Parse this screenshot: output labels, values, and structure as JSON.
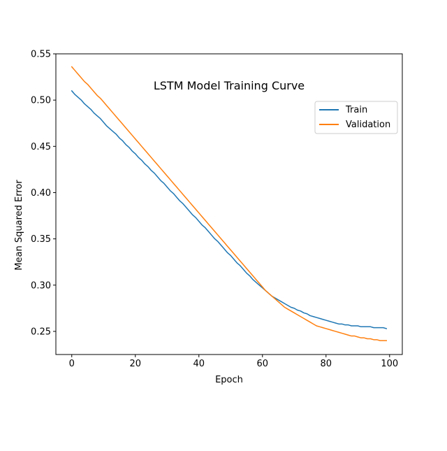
{
  "chart_data": {
    "type": "line",
    "title": "LSTM Model Training Curve",
    "xlabel": "Epoch",
    "ylabel": "Mean Squared Error",
    "xlim": [
      -5,
      104
    ],
    "ylim": [
      0.225,
      0.55
    ],
    "xticks": [
      0,
      20,
      40,
      60,
      80,
      100
    ],
    "xtick_labels": [
      "0",
      "20",
      "40",
      "60",
      "80",
      "100"
    ],
    "yticks": [
      0.25,
      0.3,
      0.35,
      0.4,
      0.45,
      0.5,
      0.55
    ],
    "ytick_labels": [
      "0.25",
      "0.30",
      "0.35",
      "0.40",
      "0.45",
      "0.50",
      "0.55"
    ],
    "grid": false,
    "legend_position": "top-right",
    "x": [
      0,
      1,
      2,
      3,
      4,
      5,
      6,
      7,
      8,
      9,
      10,
      11,
      12,
      13,
      14,
      15,
      16,
      17,
      18,
      19,
      20,
      21,
      22,
      23,
      24,
      25,
      26,
      27,
      28,
      29,
      30,
      31,
      32,
      33,
      34,
      35,
      36,
      37,
      38,
      39,
      40,
      41,
      42,
      43,
      44,
      45,
      46,
      47,
      48,
      49,
      50,
      51,
      52,
      53,
      54,
      55,
      56,
      57,
      58,
      59,
      60,
      61,
      62,
      63,
      64,
      65,
      66,
      67,
      68,
      69,
      70,
      71,
      72,
      73,
      74,
      75,
      76,
      77,
      78,
      79,
      80,
      81,
      82,
      83,
      84,
      85,
      86,
      87,
      88,
      89,
      90,
      91,
      92,
      93,
      94,
      95,
      96,
      97,
      98,
      99
    ],
    "series": [
      {
        "name": "Train",
        "color": "#1f77b4",
        "values": [
          0.51,
          0.506,
          0.503,
          0.5,
          0.496,
          0.493,
          0.49,
          0.486,
          0.483,
          0.48,
          0.476,
          0.472,
          0.469,
          0.466,
          0.463,
          0.459,
          0.456,
          0.452,
          0.449,
          0.445,
          0.442,
          0.438,
          0.435,
          0.431,
          0.428,
          0.424,
          0.421,
          0.417,
          0.413,
          0.41,
          0.406,
          0.402,
          0.399,
          0.395,
          0.391,
          0.388,
          0.384,
          0.38,
          0.376,
          0.373,
          0.369,
          0.365,
          0.362,
          0.358,
          0.354,
          0.35,
          0.347,
          0.343,
          0.339,
          0.335,
          0.332,
          0.328,
          0.324,
          0.321,
          0.317,
          0.313,
          0.31,
          0.306,
          0.303,
          0.3,
          0.297,
          0.294,
          0.291,
          0.288,
          0.286,
          0.284,
          0.282,
          0.28,
          0.278,
          0.276,
          0.275,
          0.273,
          0.272,
          0.27,
          0.269,
          0.267,
          0.266,
          0.265,
          0.264,
          0.263,
          0.262,
          0.261,
          0.26,
          0.259,
          0.258,
          0.258,
          0.257,
          0.257,
          0.256,
          0.256,
          0.256,
          0.255,
          0.255,
          0.255,
          0.255,
          0.254,
          0.254,
          0.254,
          0.254,
          0.253
        ]
      },
      {
        "name": "Validation",
        "color": "#ff7f0e",
        "values": [
          0.536,
          0.532,
          0.528,
          0.524,
          0.52,
          0.517,
          0.513,
          0.509,
          0.505,
          0.502,
          0.498,
          0.494,
          0.49,
          0.486,
          0.482,
          0.478,
          0.474,
          0.47,
          0.466,
          0.462,
          0.458,
          0.454,
          0.45,
          0.446,
          0.442,
          0.438,
          0.434,
          0.43,
          0.426,
          0.422,
          0.418,
          0.414,
          0.41,
          0.406,
          0.402,
          0.398,
          0.394,
          0.39,
          0.386,
          0.382,
          0.378,
          0.374,
          0.37,
          0.366,
          0.362,
          0.358,
          0.354,
          0.35,
          0.346,
          0.342,
          0.338,
          0.334,
          0.33,
          0.326,
          0.322,
          0.318,
          0.314,
          0.31,
          0.306,
          0.302,
          0.298,
          0.294,
          0.291,
          0.288,
          0.285,
          0.282,
          0.279,
          0.276,
          0.274,
          0.272,
          0.27,
          0.268,
          0.266,
          0.264,
          0.262,
          0.26,
          0.258,
          0.256,
          0.255,
          0.254,
          0.253,
          0.252,
          0.251,
          0.25,
          0.249,
          0.248,
          0.247,
          0.246,
          0.245,
          0.245,
          0.244,
          0.243,
          0.243,
          0.242,
          0.242,
          0.241,
          0.241,
          0.24,
          0.24,
          0.24
        ]
      }
    ]
  }
}
